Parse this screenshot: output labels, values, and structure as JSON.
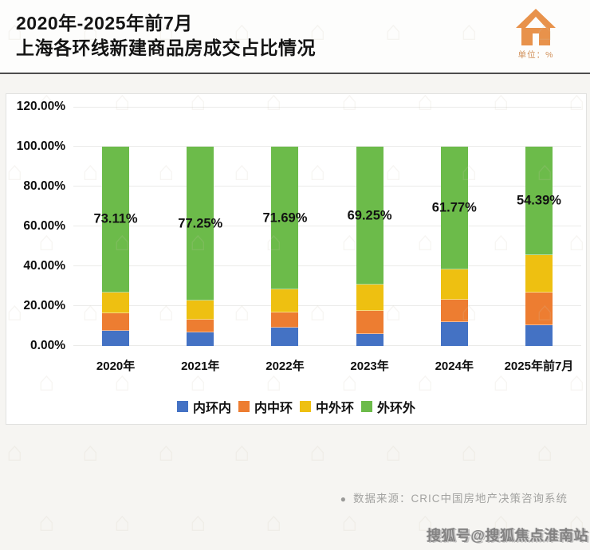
{
  "header": {
    "title_line1": "2020年-2025年前7月",
    "title_line2": "上海各环线新建商品房成交占比情况",
    "unit_label": "单位：%"
  },
  "chart_data": {
    "type": "bar",
    "stacked": true,
    "title": "2020年-2025年前7月上海各环线新建商品房成交占比情况",
    "unit": "%",
    "categories": [
      "2020年",
      "2021年",
      "2022年",
      "2023年",
      "2024年",
      "2025年前7月"
    ],
    "series": [
      {
        "name": "内环内",
        "color": "#4472c4",
        "values": [
          7.6,
          6.8,
          9.2,
          6.0,
          12.0,
          10.4
        ]
      },
      {
        "name": "内中环",
        "color": "#ed7d31",
        "values": [
          8.8,
          6.4,
          7.6,
          11.6,
          11.2,
          16.4
        ]
      },
      {
        "name": "中外环",
        "color": "#eec011",
        "values": [
          10.49,
          9.55,
          11.51,
          13.15,
          15.03,
          18.81
        ]
      },
      {
        "name": "外环外",
        "color": "#6cbb4a",
        "values": [
          73.11,
          77.25,
          71.69,
          69.25,
          61.77,
          54.39
        ]
      }
    ],
    "data_labels": {
      "series": "外环外",
      "values": [
        "73.11%",
        "77.25%",
        "71.69%",
        "69.25%",
        "61.77%",
        "54.39%"
      ]
    },
    "y_axis": {
      "ticks": [
        "0.00%",
        "20.00%",
        "40.00%",
        "60.00%",
        "80.00%",
        "100.00%",
        "120.00%"
      ],
      "min": 0,
      "max": 120,
      "step": 20
    },
    "grid": true,
    "legend_position": "bottom"
  },
  "footer": {
    "bullet": "●",
    "source": "数据来源：CRIC中国房地产决策咨询系统"
  },
  "watermark": {
    "text": "搜狐号@搜狐焦点淮南站"
  }
}
